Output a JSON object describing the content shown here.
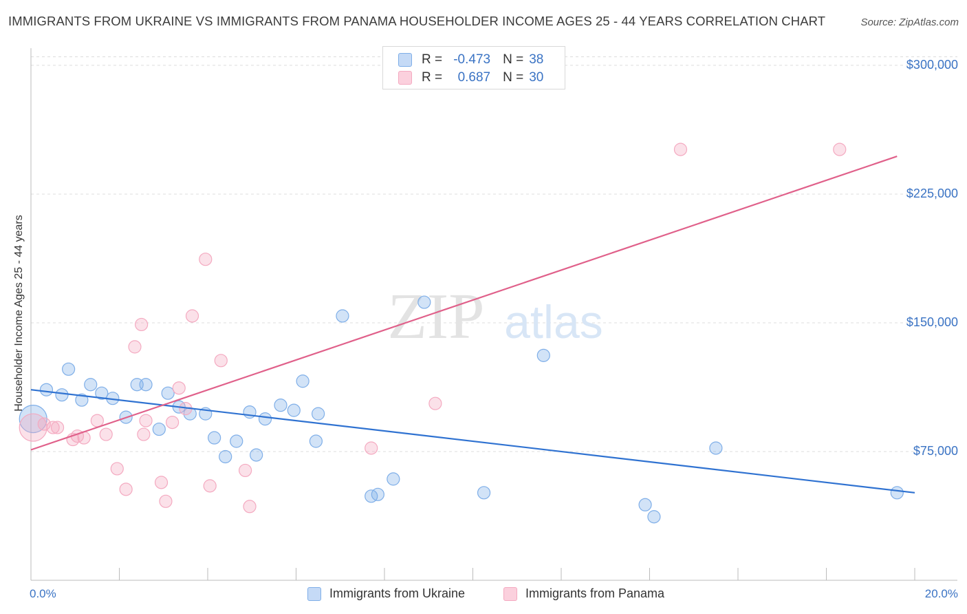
{
  "title": "IMMIGRANTS FROM UKRAINE VS IMMIGRANTS FROM PANAMA HOUSEHOLDER INCOME AGES 25 - 44 YEARS CORRELATION CHART",
  "source": "Source: ZipAtlas.com",
  "watermark": {
    "zip": "ZIP",
    "atlas": "atlas"
  },
  "legend_top": {
    "r_label": "R =",
    "n_label": "N =",
    "rows": [
      {
        "r": "-0.473",
        "n": "38"
      },
      {
        "r": "0.687",
        "n": "30"
      }
    ]
  },
  "chart_data": {
    "type": "scatter",
    "title": "IMMIGRANTS FROM UKRAINE VS IMMIGRANTS FROM PANAMA HOUSEHOLDER INCOME AGES 25 - 44 YEARS CORRELATION CHART",
    "xlabel": "",
    "ylabel": "Householder Income Ages 25 - 44 years",
    "xlim": [
      0,
      20
    ],
    "ylim": [
      0,
      310000
    ],
    "x_tick_labels": [
      "0.0%",
      "20.0%"
    ],
    "y_ticks": [
      {
        "value": 75000,
        "label": "$75,000"
      },
      {
        "value": 150000,
        "label": "$150,000"
      },
      {
        "value": 225000,
        "label": "$225,000"
      },
      {
        "value": 300000,
        "label": "$300,000"
      }
    ],
    "grid": true,
    "legend_position": "bottom",
    "series": [
      {
        "name": "Immigrants from Ukraine",
        "color": "#7eaee8",
        "line_color": "#2f72d1",
        "r": -0.473,
        "n": 38,
        "trend": {
          "x": [
            0,
            20
          ],
          "y": [
            111000,
            51000
          ]
        },
        "points": [
          {
            "x": 0.05,
            "y": 94000,
            "big": true
          },
          {
            "x": 0.35,
            "y": 111000
          },
          {
            "x": 0.7,
            "y": 108000
          },
          {
            "x": 0.85,
            "y": 123000
          },
          {
            "x": 1.15,
            "y": 105000
          },
          {
            "x": 1.35,
            "y": 114000
          },
          {
            "x": 1.6,
            "y": 109000
          },
          {
            "x": 1.85,
            "y": 106000
          },
          {
            "x": 2.15,
            "y": 95000
          },
          {
            "x": 2.4,
            "y": 114000
          },
          {
            "x": 2.6,
            "y": 114000
          },
          {
            "x": 2.9,
            "y": 88000
          },
          {
            "x": 3.1,
            "y": 109000
          },
          {
            "x": 3.35,
            "y": 101000
          },
          {
            "x": 3.6,
            "y": 97000
          },
          {
            "x": 3.95,
            "y": 97000
          },
          {
            "x": 4.15,
            "y": 83000
          },
          {
            "x": 4.4,
            "y": 72000
          },
          {
            "x": 4.65,
            "y": 81000
          },
          {
            "x": 4.95,
            "y": 98000
          },
          {
            "x": 5.1,
            "y": 73000
          },
          {
            "x": 5.3,
            "y": 94000
          },
          {
            "x": 5.65,
            "y": 102000
          },
          {
            "x": 5.95,
            "y": 99000
          },
          {
            "x": 6.15,
            "y": 116000
          },
          {
            "x": 6.45,
            "y": 81000
          },
          {
            "x": 6.5,
            "y": 97000
          },
          {
            "x": 7.05,
            "y": 154000
          },
          {
            "x": 7.7,
            "y": 49000
          },
          {
            "x": 7.85,
            "y": 50000
          },
          {
            "x": 8.2,
            "y": 59000
          },
          {
            "x": 8.9,
            "y": 162000
          },
          {
            "x": 10.25,
            "y": 51000
          },
          {
            "x": 11.6,
            "y": 131000
          },
          {
            "x": 13.9,
            "y": 44000
          },
          {
            "x": 14.1,
            "y": 37000
          },
          {
            "x": 15.5,
            "y": 77000
          },
          {
            "x": 19.6,
            "y": 51000
          }
        ]
      },
      {
        "name": "Immigrants from Panama",
        "color": "#f4a9c0",
        "line_color": "#e0608a",
        "r": 0.687,
        "n": 30,
        "trend": {
          "x": [
            0,
            19.6
          ],
          "y": [
            76000,
            247000
          ]
        },
        "points": [
          {
            "x": 0.05,
            "y": 89000,
            "big": true
          },
          {
            "x": 0.3,
            "y": 91000
          },
          {
            "x": 0.5,
            "y": 89000
          },
          {
            "x": 0.6,
            "y": 89000
          },
          {
            "x": 0.95,
            "y": 82000
          },
          {
            "x": 1.05,
            "y": 84000
          },
          {
            "x": 1.2,
            "y": 83000
          },
          {
            "x": 1.5,
            "y": 93000
          },
          {
            "x": 1.7,
            "y": 85000
          },
          {
            "x": 1.95,
            "y": 65000
          },
          {
            "x": 2.15,
            "y": 53000
          },
          {
            "x": 2.35,
            "y": 136000
          },
          {
            "x": 2.5,
            "y": 149000
          },
          {
            "x": 2.55,
            "y": 85000
          },
          {
            "x": 2.95,
            "y": 57000
          },
          {
            "x": 3.05,
            "y": 46000
          },
          {
            "x": 3.2,
            "y": 92000
          },
          {
            "x": 3.35,
            "y": 112000
          },
          {
            "x": 3.5,
            "y": 100000
          },
          {
            "x": 3.65,
            "y": 154000
          },
          {
            "x": 3.95,
            "y": 187000
          },
          {
            "x": 4.05,
            "y": 55000
          },
          {
            "x": 4.3,
            "y": 128000
          },
          {
            "x": 4.85,
            "y": 64000
          },
          {
            "x": 4.95,
            "y": 43000
          },
          {
            "x": 7.7,
            "y": 77000
          },
          {
            "x": 9.15,
            "y": 103000
          },
          {
            "x": 14.7,
            "y": 251000
          },
          {
            "x": 18.3,
            "y": 251000
          },
          {
            "x": 2.6,
            "y": 93000
          }
        ]
      }
    ]
  }
}
